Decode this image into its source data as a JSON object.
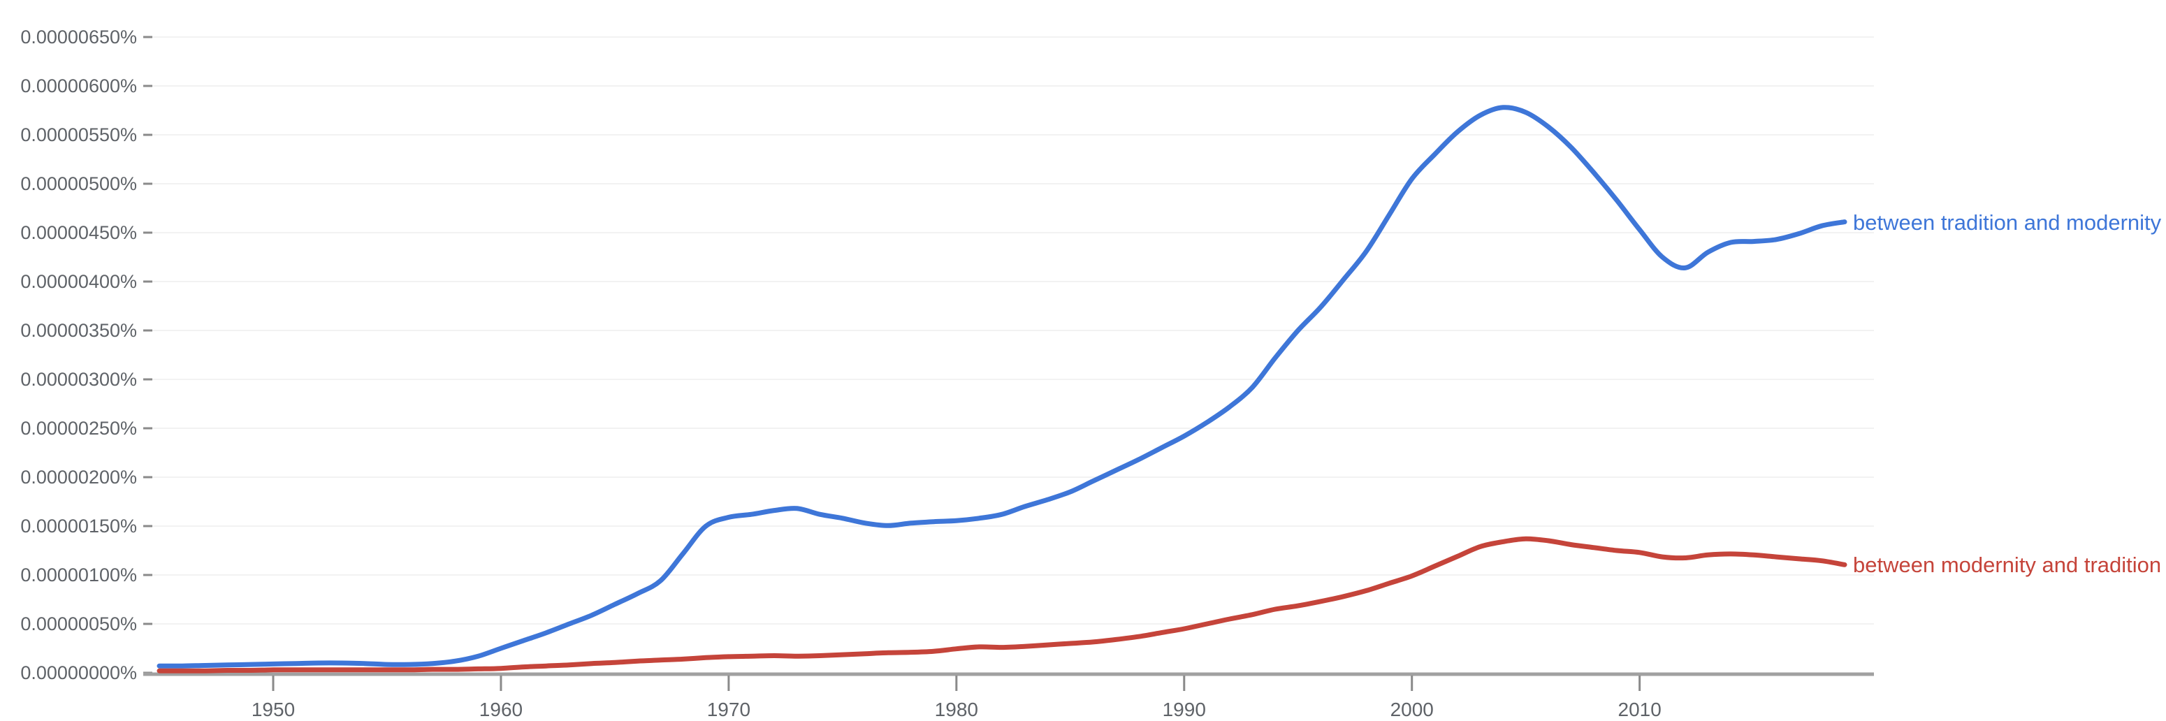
{
  "app": {
    "name": "Ngram Viewer line chart",
    "background_color": "#ffffff"
  },
  "colors": {
    "series_blue": "#3e76d8",
    "series_red": "#c5443a",
    "gridline": "#f2f2f2",
    "axis_line": "#a0a0a0",
    "tick_mark": "#8a8a8a",
    "tick_text": "#5f6368"
  },
  "chart_data": {
    "type": "line",
    "title": "",
    "xlabel": "",
    "ylabel": "",
    "grid": true,
    "legend_position": "right-end-labels",
    "value_unit": "1e-8 percent (axis shows eight-decimal percentages)",
    "xlim": [
      1944.6,
      2019
    ],
    "ylim": [
      0,
      650
    ],
    "x_tick_years": [
      1950,
      1960,
      1970,
      1980,
      1990,
      2000,
      2010
    ],
    "y_tick_labels": [
      "0.00000000%",
      "0.00000050%",
      "0.00000100%",
      "0.00000150%",
      "0.00000200%",
      "0.00000250%",
      "0.00000300%",
      "0.00000350%",
      "0.00000400%",
      "0.00000450%",
      "0.00000500%",
      "0.00000550%",
      "0.00000600%",
      "0.00000650%"
    ],
    "y_tick_values": [
      0,
      50,
      100,
      150,
      200,
      250,
      300,
      350,
      400,
      450,
      500,
      550,
      600,
      650
    ],
    "x": [
      1945,
      1946,
      1947,
      1948,
      1949,
      1950,
      1951,
      1952,
      1953,
      1954,
      1955,
      1956,
      1957,
      1958,
      1959,
      1960,
      1961,
      1962,
      1963,
      1964,
      1965,
      1966,
      1967,
      1968,
      1969,
      1970,
      1971,
      1972,
      1973,
      1974,
      1975,
      1976,
      1977,
      1978,
      1979,
      1980,
      1981,
      1982,
      1983,
      1984,
      1985,
      1986,
      1987,
      1988,
      1989,
      1990,
      1991,
      1992,
      1993,
      1994,
      1995,
      1996,
      1997,
      1998,
      1999,
      2000,
      2001,
      2002,
      2003,
      2004,
      2005,
      2006,
      2007,
      2008,
      2009,
      2010,
      2011,
      2012,
      2013,
      2014,
      2015,
      2016,
      2017,
      2018,
      2019
    ],
    "series": [
      {
        "name": "between tradition and modernity",
        "color": "#3e76d8",
        "values": [
          7,
          7,
          7.5,
          8,
          8.5,
          9,
          9.5,
          10,
          10,
          9.5,
          8.5,
          8.5,
          9.5,
          12,
          17,
          25,
          33,
          41,
          50,
          59,
          70,
          81,
          94,
          122,
          150,
          159,
          162,
          166,
          168,
          162,
          158,
          153,
          150.5,
          153,
          154.5,
          155.5,
          158,
          162,
          170,
          177,
          185,
          196,
          207,
          218,
          230,
          242,
          256,
          272,
          292,
          322,
          350,
          374,
          402,
          431,
          468,
          505,
          530,
          553,
          570,
          578,
          573,
          558,
          537,
          511,
          483,
          453,
          425,
          414,
          430,
          440,
          441,
          443,
          449,
          457,
          461
        ]
      },
      {
        "name": "between modernity and tradition",
        "color": "#c5443a",
        "values": [
          2,
          2,
          2,
          2.5,
          2.5,
          3,
          3,
          3,
          3,
          3,
          3,
          3,
          3.5,
          3.5,
          4,
          4.5,
          6,
          7,
          8,
          9.5,
          10.5,
          12,
          13,
          14,
          15.5,
          16.5,
          17,
          17.5,
          17,
          17.5,
          18.5,
          19.5,
          20.5,
          21,
          22,
          24.5,
          26.5,
          26,
          27,
          28.5,
          30,
          31.5,
          34,
          37,
          41,
          45,
          50,
          55,
          59.5,
          65,
          68.5,
          73,
          78,
          84,
          91.5,
          99,
          109,
          119,
          129,
          134,
          137,
          135,
          131,
          128,
          125,
          123,
          118.5,
          117.5,
          120.5,
          121.5,
          120.5,
          118.5,
          116.5,
          114.5,
          110.5
        ]
      }
    ]
  }
}
